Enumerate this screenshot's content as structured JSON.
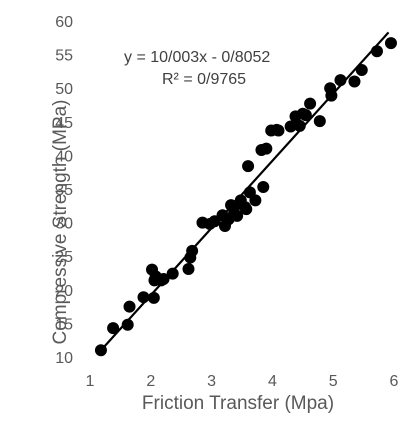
{
  "chart_data": {
    "type": "scatter",
    "xlabel": "Friction Transfer (Mpa)",
    "ylabel": "Compressive Strength (MPa)",
    "xlim": [
      1,
      6
    ],
    "ylim": [
      10,
      60
    ],
    "xticks": [
      "1",
      "2",
      "3",
      "4",
      "5",
      "6"
    ],
    "yticks": [
      "10",
      "15",
      "20",
      "25",
      "30",
      "35",
      "40",
      "45",
      "50",
      "55",
      "60"
    ],
    "grid": false,
    "legend": "none",
    "annotations": {
      "equation": "y = 10/003x - 0/8052",
      "r_squared": "R² = 0/9765"
    },
    "trendline": {
      "x": [
        1.19,
        5.91
      ],
      "y": [
        11.1,
        58.3
      ]
    },
    "point_color": "#000000",
    "series": [
      {
        "values_x": [
          1.18,
          1.38,
          1.62,
          1.65,
          1.88,
          2.02,
          2.05,
          2.06,
          2.08,
          2.17,
          2.21,
          2.36,
          2.62,
          2.65,
          2.68,
          2.85,
          2.97,
          3.05,
          3.18,
          3.22,
          3.28,
          3.32,
          3.37,
          3.42,
          3.46,
          3.48,
          3.55,
          3.57,
          3.6,
          3.63,
          3.72,
          3.82,
          3.85,
          3.9,
          3.98,
          4.07,
          4.1,
          4.3,
          4.38,
          4.45,
          4.5,
          4.55,
          4.62,
          4.78,
          4.95,
          4.97,
          5.12,
          5.35,
          5.47,
          5.72,
          5.95
        ],
        "values_y": [
          11.0,
          14.3,
          14.8,
          17.5,
          18.9,
          23.0,
          18.8,
          21.4,
          22.0,
          21.4,
          21.6,
          22.4,
          23.1,
          24.8,
          25.8,
          30.0,
          29.8,
          30.2,
          31.1,
          29.5,
          30.5,
          32.6,
          31.4,
          31.0,
          32.8,
          33.3,
          32.3,
          32.0,
          38.4,
          34.5,
          33.3,
          40.8,
          35.3,
          41.0,
          43.7,
          43.8,
          43.7,
          44.3,
          45.8,
          44.4,
          46.2,
          46.0,
          47.7,
          45.1,
          50.0,
          48.9,
          51.2,
          51.0,
          52.7,
          55.5,
          56.7
        ]
      }
    ]
  }
}
